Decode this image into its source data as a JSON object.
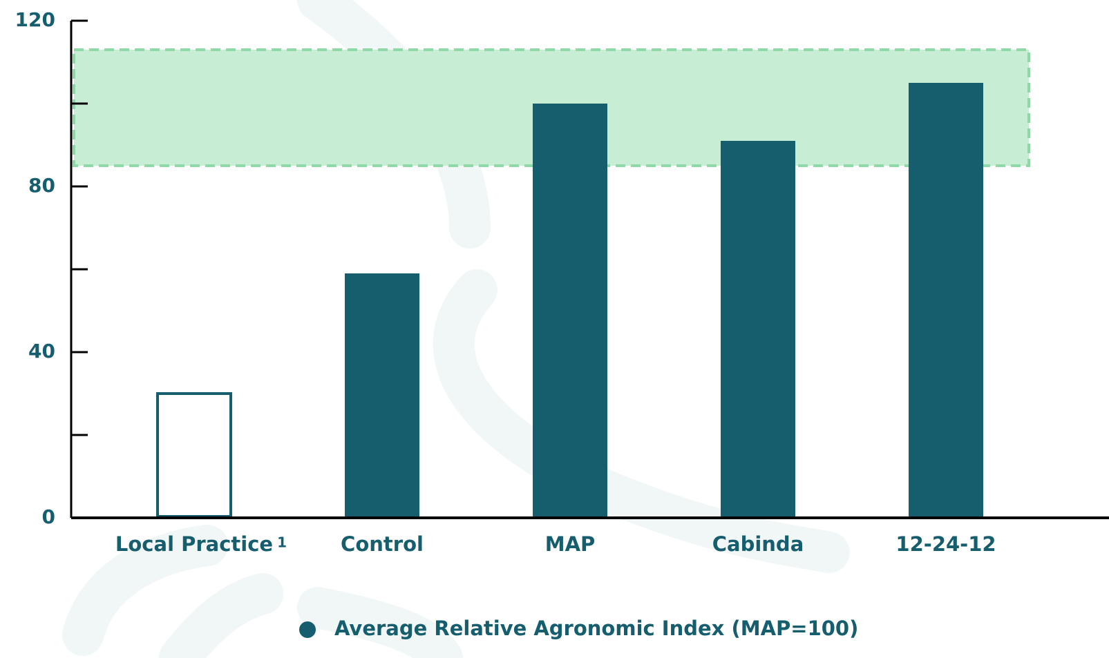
{
  "chart_data": {
    "type": "bar",
    "categories": [
      "Local Practice",
      "Control",
      "MAP",
      "Cabinda",
      "12-24-12"
    ],
    "category_footnotes": [
      "1",
      null,
      null,
      null,
      null
    ],
    "series": [
      {
        "name": "Average Relative Agronomic Index (MAP=100)",
        "color": "#165e6e",
        "values": [
          30,
          59,
          100,
          91,
          105
        ]
      }
    ],
    "outlined": [
      true,
      false,
      false,
      false,
      false
    ],
    "ylim": [
      0,
      120
    ],
    "yticks": [
      0,
      40,
      80,
      120
    ],
    "minor_yticks": [
      20,
      60,
      100
    ],
    "highlight_band": {
      "range": [
        85,
        113
      ],
      "color": "#c5ecd3",
      "border_color": "#8fd9a8"
    },
    "legend": "bottom"
  }
}
